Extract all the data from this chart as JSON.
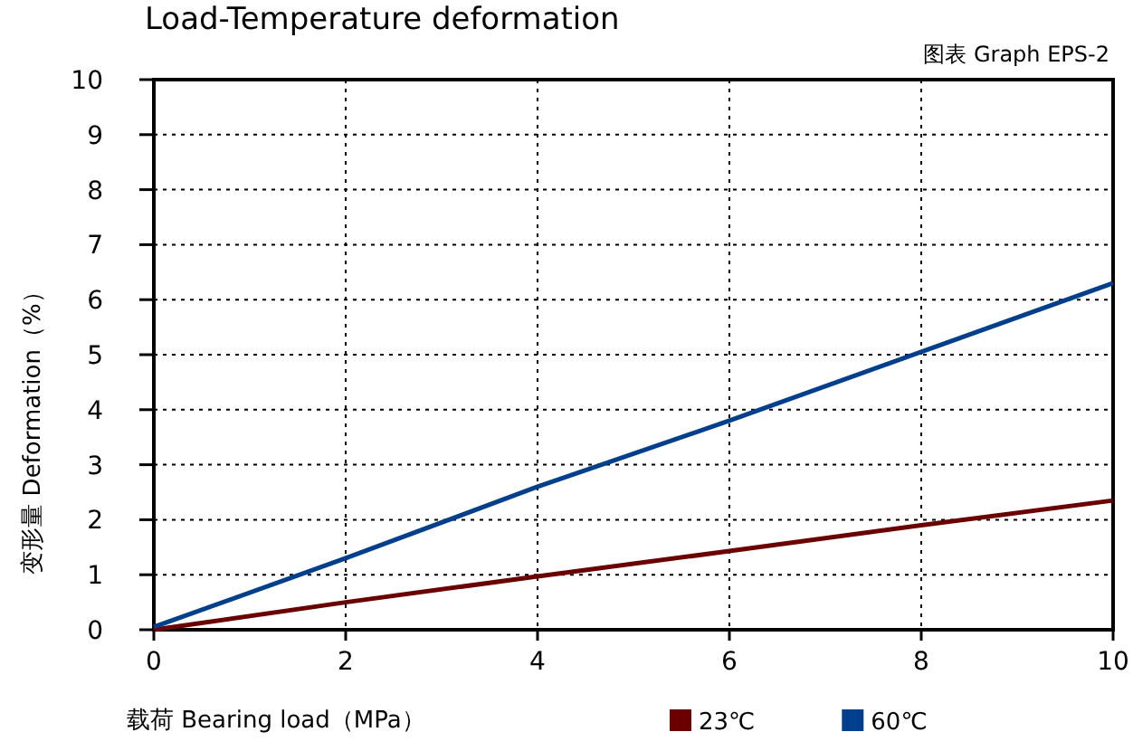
{
  "chart_data": {
    "type": "line",
    "title": "Load-Temperature deformation",
    "subtitle": "图表 Graph EPS-2",
    "xlabel": "载荷 Bearing load（MPa）",
    "ylabel": "变形量 Deformation（%）",
    "x": [
      0,
      2,
      4,
      6,
      8,
      10
    ],
    "series": [
      {
        "name": "23℃",
        "color": "#6b0000",
        "values": [
          0,
          0.5,
          0.97,
          1.43,
          1.9,
          2.35
        ]
      },
      {
        "name": "60℃",
        "color": "#003f8c",
        "values": [
          0.05,
          1.3,
          2.6,
          3.8,
          5.05,
          6.3
        ]
      }
    ],
    "xlim": [
      0,
      10
    ],
    "xticks": [
      0,
      2,
      4,
      6,
      8,
      10
    ],
    "ylim": [
      0,
      10
    ],
    "yticks": [
      0,
      1,
      2,
      3,
      4,
      5,
      6,
      7,
      8,
      9,
      10
    ],
    "grid": true,
    "legend": "bottom",
    "marker": "none",
    "line_style": "solid"
  }
}
